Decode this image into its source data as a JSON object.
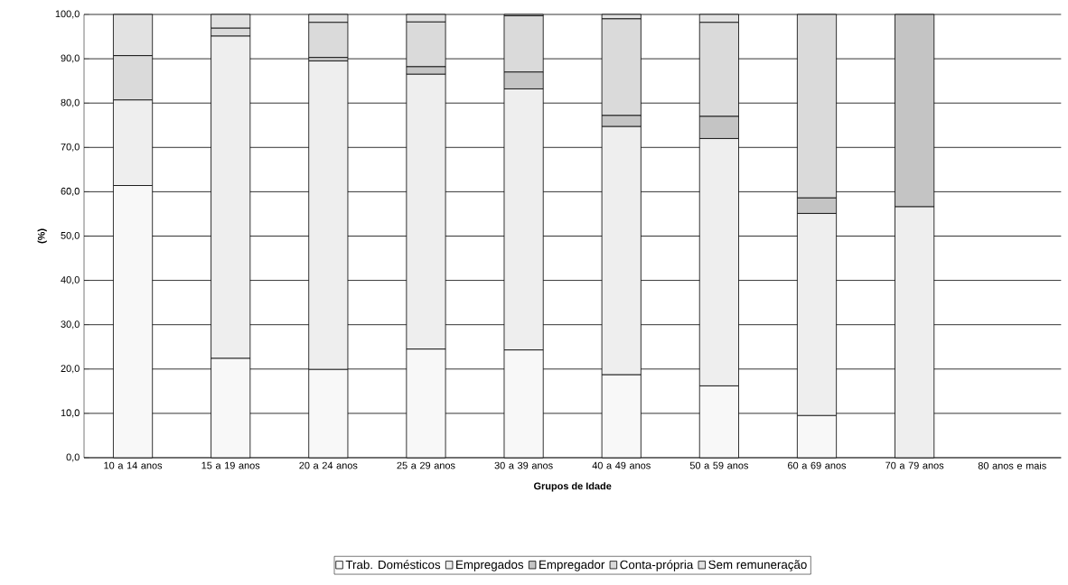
{
  "chart_data": {
    "type": "bar",
    "stacked": true,
    "xlabel": "Grupos de Idade",
    "ylabel": "(%)",
    "categories": [
      "10 a 14 anos",
      "15 a 19 anos",
      "20 a 24 anos",
      "25 a 29 anos",
      "30 a 39 anos",
      "40 a 49 anos",
      "50 a 59 anos",
      "60 a 69 anos",
      "70 a 79 anos",
      "80 anos e mais"
    ],
    "series": [
      {
        "name": "Trab. Domésticos",
        "color": "#f8f8f8",
        "values": [
          61.4,
          22.4,
          19.9,
          24.5,
          24.3,
          18.7,
          16.2,
          9.5,
          0,
          0
        ]
      },
      {
        "name": "Empregados",
        "color": "#eeeeee",
        "values": [
          19.3,
          72.7,
          69.6,
          62.0,
          58.9,
          56.0,
          55.8,
          45.6,
          56.6,
          0
        ]
      },
      {
        "name": "Empregador",
        "color": "#c4c4c4",
        "values": [
          0,
          0,
          0.8,
          1.7,
          3.8,
          2.5,
          5.0,
          3.5,
          43.4,
          0
        ]
      },
      {
        "name": "Conta-própria",
        "color": "#dadada",
        "values": [
          10.0,
          1.8,
          7.9,
          10.1,
          12.7,
          21.8,
          21.2,
          41.4,
          0,
          0
        ]
      },
      {
        "name": "Sem remuneração",
        "color": "#e2e2e2",
        "values": [
          9.3,
          3.1,
          1.8,
          1.7,
          0.3,
          1.0,
          1.8,
          0,
          0,
          0
        ]
      }
    ],
    "ylim": [
      0,
      100
    ],
    "yticks": [
      {
        "value": 0,
        "label": "0,0"
      },
      {
        "value": 10,
        "label": "10,0"
      },
      {
        "value": 20,
        "label": "20,0"
      },
      {
        "value": 30,
        "label": "30,0"
      },
      {
        "value": 40,
        "label": "40,0"
      },
      {
        "value": 50,
        "label": "50,0"
      },
      {
        "value": 60,
        "label": "60,0"
      },
      {
        "value": 70,
        "label": "70,0"
      },
      {
        "value": 80,
        "label": "80,0"
      },
      {
        "value": 90,
        "label": "90,0"
      },
      {
        "value": 100,
        "label": "100,0"
      }
    ],
    "grid": "y",
    "legend": "bottom"
  }
}
